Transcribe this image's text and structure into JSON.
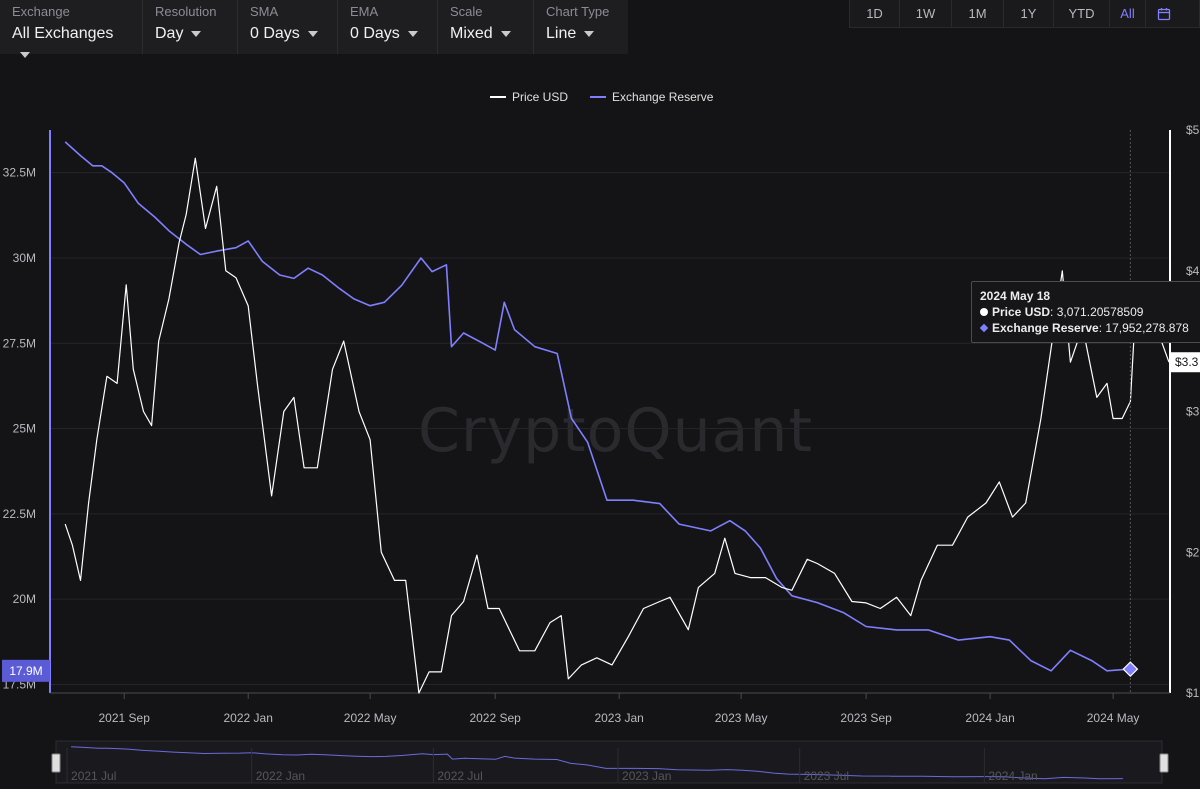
{
  "controls": [
    {
      "label": "Exchange",
      "value": "All Exchanges"
    },
    {
      "label": "Resolution",
      "value": "Day"
    },
    {
      "label": "SMA",
      "value": "0 Days"
    },
    {
      "label": "EMA",
      "value": "0 Days"
    },
    {
      "label": "Scale",
      "value": "Mixed"
    },
    {
      "label": "Chart Type",
      "value": "Line"
    }
  ],
  "ranges": [
    "1D",
    "1W",
    "1M",
    "1Y",
    "YTD",
    "All"
  ],
  "active_range": "All",
  "watermark": "CryptoQuant",
  "tooltip": {
    "date": "2024 May 18",
    "price_label": "Price USD",
    "price_value": "3,071.20578509",
    "reserve_label": "Exchange Reserve",
    "reserve_value": "17,952,278.878"
  },
  "colors": {
    "price": "#ffffff",
    "reserve": "#7f7fff",
    "background": "#141416"
  },
  "chart_data": {
    "type": "line",
    "legend": [
      "Price USD",
      "Exchange Reserve"
    ],
    "legend_position": "top-center",
    "x_ticks": [
      "2021 Sep",
      "2022 Jan",
      "2022 May",
      "2022 Sep",
      "2023 Jan",
      "2023 May",
      "2023 Sep",
      "2024 Jan",
      "2024 May"
    ],
    "y_left_ticks": [
      "32.5M",
      "30M",
      "27.5M",
      "25M",
      "22.5M",
      "20M",
      "17.5M"
    ],
    "y_left_range": [
      17.25,
      33.75
    ],
    "y_left_current": "17.9M",
    "y_right_ticks": [
      "$5",
      "$4",
      "$3",
      "$2",
      "$1"
    ],
    "y_right_range": [
      1000,
      5000
    ],
    "y_right_current": "$3.3",
    "navigator_ticks": [
      "2021 Jul",
      "2022 Jan",
      "2022 Jul",
      "2023 Jan",
      "2023 Jul",
      "2024 Jan"
    ],
    "series": [
      {
        "name": "Exchange Reserve",
        "axis": "left",
        "unit": "ETH",
        "points": [
          [
            "2021-07-05",
            33.4
          ],
          [
            "2021-07-20",
            33.0
          ],
          [
            "2021-08-01",
            32.7
          ],
          [
            "2021-08-10",
            32.7
          ],
          [
            "2021-08-20",
            32.5
          ],
          [
            "2021-09-01",
            32.2
          ],
          [
            "2021-09-15",
            31.6
          ],
          [
            "2021-10-01",
            31.2
          ],
          [
            "2021-10-15",
            30.8
          ],
          [
            "2021-11-01",
            30.4
          ],
          [
            "2021-11-15",
            30.1
          ],
          [
            "2021-12-01",
            30.2
          ],
          [
            "2021-12-20",
            30.3
          ],
          [
            "2022-01-01",
            30.5
          ],
          [
            "2022-01-15",
            29.9
          ],
          [
            "2022-02-01",
            29.5
          ],
          [
            "2022-02-15",
            29.4
          ],
          [
            "2022-03-01",
            29.7
          ],
          [
            "2022-03-15",
            29.5
          ],
          [
            "2022-04-01",
            29.1
          ],
          [
            "2022-04-15",
            28.8
          ],
          [
            "2022-05-01",
            28.6
          ],
          [
            "2022-05-15",
            28.7
          ],
          [
            "2022-06-01",
            29.2
          ],
          [
            "2022-06-20",
            30.0
          ],
          [
            "2022-07-01",
            29.6
          ],
          [
            "2022-07-15",
            29.8
          ],
          [
            "2022-07-20",
            27.4
          ],
          [
            "2022-08-01",
            27.8
          ],
          [
            "2022-08-20",
            27.5
          ],
          [
            "2022-09-01",
            27.3
          ],
          [
            "2022-09-10",
            28.7
          ],
          [
            "2022-09-20",
            27.9
          ],
          [
            "2022-10-10",
            27.4
          ],
          [
            "2022-11-01",
            27.2
          ],
          [
            "2022-11-15",
            25.3
          ],
          [
            "2022-12-01",
            24.6
          ],
          [
            "2022-12-20",
            22.9
          ],
          [
            "2023-01-15",
            22.9
          ],
          [
            "2023-02-10",
            22.8
          ],
          [
            "2023-03-01",
            22.2
          ],
          [
            "2023-04-01",
            22.0
          ],
          [
            "2023-04-20",
            22.3
          ],
          [
            "2023-05-05",
            22.0
          ],
          [
            "2023-05-20",
            21.5
          ],
          [
            "2023-06-05",
            20.6
          ],
          [
            "2023-06-20",
            20.1
          ],
          [
            "2023-07-15",
            19.9
          ],
          [
            "2023-08-10",
            19.6
          ],
          [
            "2023-09-01",
            19.2
          ],
          [
            "2023-10-01",
            19.1
          ],
          [
            "2023-11-01",
            19.1
          ],
          [
            "2023-12-01",
            18.8
          ],
          [
            "2024-01-01",
            18.9
          ],
          [
            "2024-01-20",
            18.8
          ],
          [
            "2024-02-10",
            18.2
          ],
          [
            "2024-03-01",
            17.9
          ],
          [
            "2024-03-20",
            18.5
          ],
          [
            "2024-04-10",
            18.2
          ],
          [
            "2024-04-25",
            17.9
          ],
          [
            "2024-05-18",
            17.95
          ]
        ]
      },
      {
        "name": "Price USD",
        "axis": "right",
        "unit": "USD",
        "points": [
          [
            "2021-07-05",
            2200
          ],
          [
            "2021-07-12",
            2050
          ],
          [
            "2021-07-20",
            1800
          ],
          [
            "2021-07-28",
            2350
          ],
          [
            "2021-08-05",
            2800
          ],
          [
            "2021-08-15",
            3250
          ],
          [
            "2021-08-25",
            3200
          ],
          [
            "2021-09-03",
            3900
          ],
          [
            "2021-09-10",
            3300
          ],
          [
            "2021-09-20",
            3000
          ],
          [
            "2021-09-28",
            2900
          ],
          [
            "2021-10-05",
            3500
          ],
          [
            "2021-10-15",
            3800
          ],
          [
            "2021-10-25",
            4200
          ],
          [
            "2021-11-01",
            4400
          ],
          [
            "2021-11-10",
            4800
          ],
          [
            "2021-11-20",
            4300
          ],
          [
            "2021-12-01",
            4600
          ],
          [
            "2021-12-10",
            4000
          ],
          [
            "2021-12-20",
            3950
          ],
          [
            "2022-01-01",
            3750
          ],
          [
            "2022-01-10",
            3200
          ],
          [
            "2022-01-24",
            2400
          ],
          [
            "2022-02-05",
            3000
          ],
          [
            "2022-02-15",
            3100
          ],
          [
            "2022-02-25",
            2600
          ],
          [
            "2022-03-10",
            2600
          ],
          [
            "2022-03-25",
            3300
          ],
          [
            "2022-04-05",
            3500
          ],
          [
            "2022-04-20",
            3000
          ],
          [
            "2022-05-01",
            2800
          ],
          [
            "2022-05-12",
            2000
          ],
          [
            "2022-05-25",
            1800
          ],
          [
            "2022-06-05",
            1800
          ],
          [
            "2022-06-18",
            1000
          ],
          [
            "2022-06-28",
            1150
          ],
          [
            "2022-07-10",
            1150
          ],
          [
            "2022-07-20",
            1550
          ],
          [
            "2022-08-01",
            1650
          ],
          [
            "2022-08-14",
            1980
          ],
          [
            "2022-08-25",
            1600
          ],
          [
            "2022-09-05",
            1600
          ],
          [
            "2022-09-15",
            1450
          ],
          [
            "2022-09-25",
            1300
          ],
          [
            "2022-10-10",
            1300
          ],
          [
            "2022-10-25",
            1500
          ],
          [
            "2022-11-05",
            1550
          ],
          [
            "2022-11-12",
            1100
          ],
          [
            "2022-11-25",
            1200
          ],
          [
            "2022-12-10",
            1250
          ],
          [
            "2022-12-25",
            1200
          ],
          [
            "2023-01-10",
            1400
          ],
          [
            "2023-01-25",
            1600
          ],
          [
            "2023-02-10",
            1650
          ],
          [
            "2023-02-20",
            1680
          ],
          [
            "2023-03-10",
            1450
          ],
          [
            "2023-03-20",
            1750
          ],
          [
            "2023-04-05",
            1850
          ],
          [
            "2023-04-15",
            2100
          ],
          [
            "2023-04-25",
            1850
          ],
          [
            "2023-05-10",
            1820
          ],
          [
            "2023-05-25",
            1820
          ],
          [
            "2023-06-10",
            1750
          ],
          [
            "2023-06-20",
            1730
          ],
          [
            "2023-07-05",
            1950
          ],
          [
            "2023-07-15",
            1920
          ],
          [
            "2023-08-01",
            1850
          ],
          [
            "2023-08-18",
            1650
          ],
          [
            "2023-09-01",
            1640
          ],
          [
            "2023-09-15",
            1600
          ],
          [
            "2023-10-01",
            1680
          ],
          [
            "2023-10-15",
            1550
          ],
          [
            "2023-10-25",
            1800
          ],
          [
            "2023-11-10",
            2050
          ],
          [
            "2023-11-25",
            2050
          ],
          [
            "2023-12-10",
            2250
          ],
          [
            "2023-12-28",
            2350
          ],
          [
            "2024-01-10",
            2500
          ],
          [
            "2024-01-23",
            2250
          ],
          [
            "2024-02-05",
            2350
          ],
          [
            "2024-02-20",
            2950
          ],
          [
            "2024-03-01",
            3450
          ],
          [
            "2024-03-12",
            4000
          ],
          [
            "2024-03-20",
            3350
          ],
          [
            "2024-04-01",
            3600
          ],
          [
            "2024-04-15",
            3100
          ],
          [
            "2024-04-25",
            3200
          ],
          [
            "2024-05-01",
            2950
          ],
          [
            "2024-05-10",
            2950
          ],
          [
            "2024-05-18",
            3071
          ],
          [
            "2024-05-24",
            3850
          ],
          [
            "2024-06-05",
            3800
          ],
          [
            "2024-06-15",
            3550
          ],
          [
            "2024-06-25",
            3350
          ]
        ]
      }
    ]
  }
}
